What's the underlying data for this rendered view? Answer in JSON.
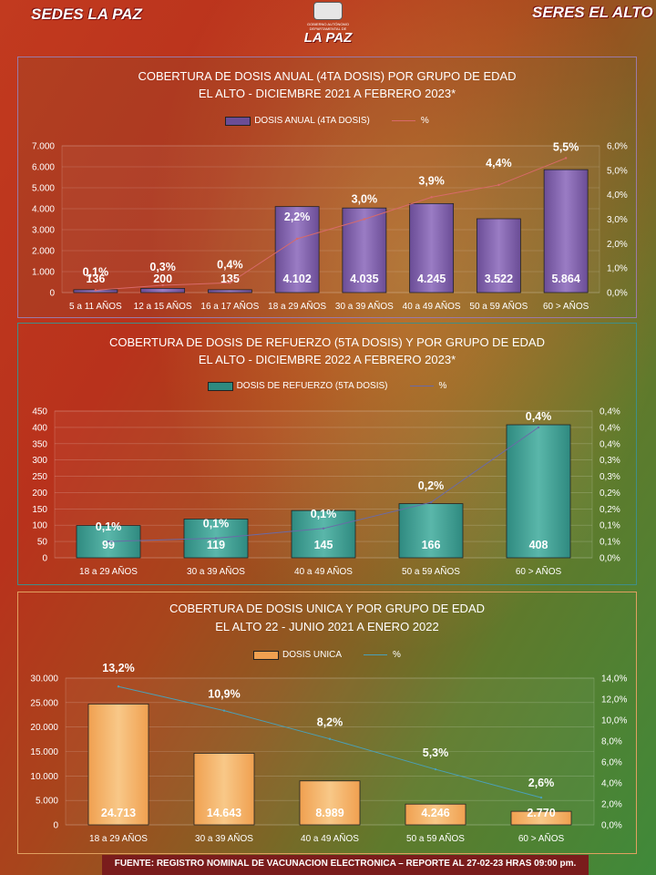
{
  "header": {
    "logo_left": "SEDES LA PAZ",
    "logo_center_top": "GOBIERNO AUTÓNOMO DEPARTAMENTAL DE",
    "logo_center": "LA PAZ",
    "logo_right": "SERES EL ALTO"
  },
  "footer": "FUENTE: REGISTRO NOMINAL DE VACUNACION ELECTRONICA – REPORTE AL 27-02-23 HRAS 09:00 pm.",
  "chart_data": [
    {
      "type": "bar",
      "title": "COBERTURA DE DOSIS ANUAL (4TA DOSIS) POR GRUPO DE EDAD",
      "subtitle": "EL ALTO - DICIEMBRE 2021 A FEBRERO 2023*",
      "categories": [
        "5 a 11 AÑOS",
        "12 a 15 AÑOS",
        "16 a 17 AÑOS",
        "18 a 29 AÑOS",
        "30 a 39 AÑOS",
        "40 a 49 AÑOS",
        "50 a 59 AÑOS",
        "60 > AÑOS"
      ],
      "series": [
        {
          "name": "DOSIS ANUAL (4TA DOSIS)",
          "values": [
            136,
            200,
            135,
            4102,
            4035,
            4245,
            3522,
            5864
          ],
          "labels": [
            "136",
            "200",
            "135",
            "4.102",
            "4.035",
            "4.245",
            "3.522",
            "5.864"
          ]
        },
        {
          "name": "%",
          "values": [
            0.1,
            0.3,
            0.4,
            2.2,
            3.0,
            3.9,
            4.4,
            5.5
          ],
          "labels": [
            "0,1%",
            "0,3%",
            "0,4%",
            "2,2%",
            "3,0%",
            "3,9%",
            "4,4%",
            "5,5%"
          ]
        }
      ],
      "ylim": [
        0,
        7000
      ],
      "y_ticks": [
        "0",
        "1.000",
        "2.000",
        "3.000",
        "4.000",
        "5.000",
        "6.000",
        "7.000"
      ],
      "y2lim": [
        0,
        6
      ],
      "y2_ticks": [
        "0,0%",
        "1,0%",
        "2,0%",
        "3,0%",
        "4,0%",
        "5,0%",
        "6,0%"
      ],
      "colors": {
        "bar": "#6b4d96",
        "bar_light": "#9a7cc4",
        "line": "#d86a6a"
      },
      "legend_position": "top"
    },
    {
      "type": "bar",
      "title": "COBERTURA DE DOSIS DE REFUERZO (5TA DOSIS) Y POR GRUPO DE EDAD",
      "subtitle": "EL ALTO - DICIEMBRE 2022 A FEBRERO 2023*",
      "categories": [
        "18 a 29 AÑOS",
        "30 a 39 AÑOS",
        "40 a 49 AÑOS",
        "50 a 59 AÑOS",
        "60 > AÑOS"
      ],
      "series": [
        {
          "name": "DOSIS DE REFUERZO (5TA DOSIS)",
          "values": [
            99,
            119,
            145,
            166,
            408
          ],
          "labels": [
            "99",
            "119",
            "145",
            "166",
            "408"
          ]
        },
        {
          "name": "%",
          "values": [
            0.05,
            0.06,
            0.09,
            0.17,
            0.4
          ],
          "labels": [
            "0,1%",
            "0,1%",
            "0,1%",
            "0,2%",
            "0,4%"
          ]
        }
      ],
      "ylim": [
        0,
        450
      ],
      "y_ticks": [
        "0",
        "50",
        "100",
        "150",
        "200",
        "250",
        "300",
        "350",
        "400",
        "450"
      ],
      "y2lim": [
        0,
        0.45
      ],
      "y2_ticks": [
        "0,0%",
        "0,1%",
        "0,1%",
        "0,2%",
        "0,2%",
        "0,3%",
        "0,3%",
        "0,4%",
        "0,4%",
        "0,4%"
      ],
      "colors": {
        "bar": "#2f8a80",
        "bar_light": "#5ab7aa",
        "line": "#6a6aa8"
      },
      "legend_position": "top"
    },
    {
      "type": "bar",
      "title": "COBERTURA DE DOSIS UNICA Y POR GRUPO DE EDAD",
      "subtitle": "EL ALTO 22 - JUNIO 2021 A ENERO 2022",
      "categories": [
        "18 a 29 AÑOS",
        "30 a 39 AÑOS",
        "40 a 49 AÑOS",
        "50 a 59 AÑOS",
        "60 > AÑOS"
      ],
      "series": [
        {
          "name": "DOSIS UNICA",
          "values": [
            24713,
            14643,
            8989,
            4246,
            2770
          ],
          "labels": [
            "24.713",
            "14.643",
            "8.989",
            "4.246",
            "2.770"
          ]
        },
        {
          "name": "%",
          "values": [
            13.2,
            10.9,
            8.2,
            5.3,
            2.6
          ],
          "labels": [
            "13,2%",
            "10,9%",
            "8,2%",
            "5,3%",
            "2,6%"
          ]
        }
      ],
      "ylim": [
        0,
        30000
      ],
      "y_ticks": [
        "0",
        "5.000",
        "10.000",
        "15.000",
        "20.000",
        "25.000",
        "30.000"
      ],
      "y2lim": [
        0,
        14
      ],
      "y2_ticks": [
        "0,0%",
        "2,0%",
        "4,0%",
        "6,0%",
        "8,0%",
        "10,0%",
        "12,0%",
        "14,0%"
      ],
      "colors": {
        "bar": "#f0a050",
        "bar_light": "#f8c888",
        "line": "#4aa0b8"
      },
      "legend_position": "top"
    }
  ]
}
